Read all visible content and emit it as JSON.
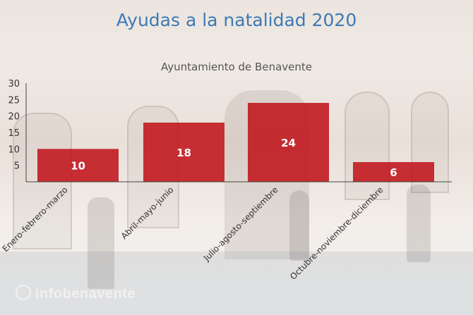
{
  "title": "Ayudas a la natalidad 2020",
  "subtitle": "Ayuntamiento de Benavente",
  "watermark": "infobenavente",
  "colors": {
    "bar": "#c0151b",
    "title": "#3d7ab5"
  },
  "chart_data": {
    "type": "bar",
    "title": "Ayudas a la natalidad 2020",
    "subtitle": "Ayuntamiento de Benavente",
    "categories": [
      "Enero-febrero-marzo",
      "Abril-mayo-junio",
      "Julio-agosto-septiembre",
      "Octubre-noviembre-diciembre"
    ],
    "values": [
      10,
      18,
      24,
      6
    ],
    "data_labels": [
      "10",
      "18",
      "24",
      "6"
    ],
    "yticks": [
      "5",
      "10",
      "15",
      "20",
      "25",
      "30"
    ],
    "ylim": [
      0,
      30
    ],
    "xlabel": "",
    "ylabel": "",
    "grid": false,
    "legend": false
  }
}
